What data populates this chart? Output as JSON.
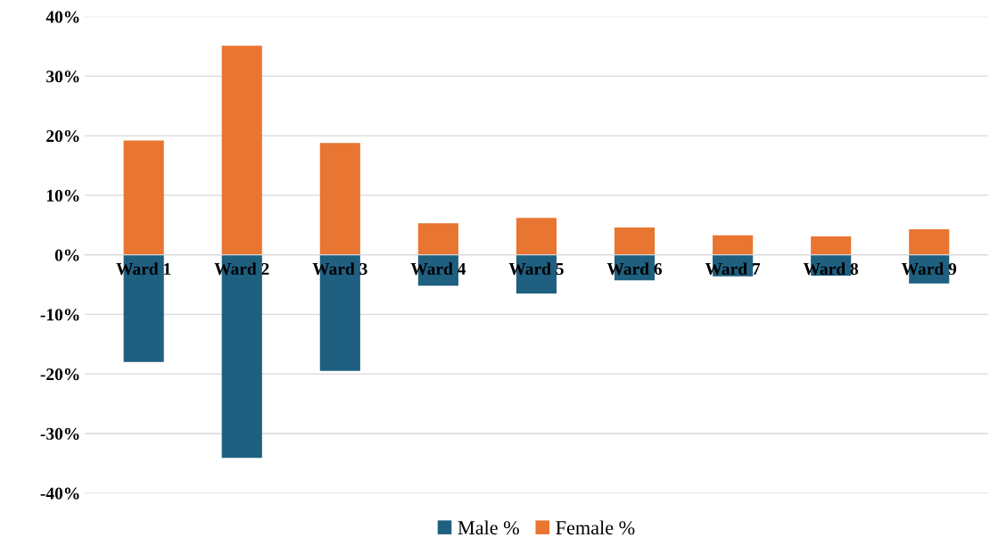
{
  "chart_data": {
    "type": "bar",
    "categories": [
      "Ward 1",
      "Ward 2",
      "Ward 3",
      "Ward 4",
      "Ward 5",
      "Ward 6",
      "Ward 7",
      "Ward 8",
      "Ward 9"
    ],
    "series": [
      {
        "name": "Male %",
        "color": "#1f5f80",
        "values": [
          -18.0,
          -34.1,
          -19.5,
          -5.2,
          -6.5,
          -4.3,
          -3.6,
          -3.5,
          -4.8
        ]
      },
      {
        "name": "Female %",
        "color": "#e97532",
        "values": [
          19.2,
          35.1,
          18.8,
          5.3,
          6.2,
          4.6,
          3.3,
          3.1,
          4.3
        ]
      }
    ],
    "ylim": [
      -40,
      40
    ],
    "yticks": [
      {
        "value": -40,
        "label": "-40%"
      },
      {
        "value": -30,
        "label": "-30%"
      },
      {
        "value": -20,
        "label": "-20%"
      },
      {
        "value": -10,
        "label": "-10%"
      },
      {
        "value": 0,
        "label": "0%"
      },
      {
        "value": 10,
        "label": "10%"
      },
      {
        "value": 20,
        "label": "20%"
      },
      {
        "value": 30,
        "label": "30%"
      },
      {
        "value": 40,
        "label": "40%"
      }
    ],
    "grid": "y",
    "legend": "bottom",
    "stacked": true
  }
}
